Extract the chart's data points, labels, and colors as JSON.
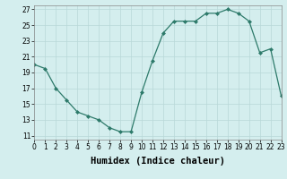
{
  "x": [
    0,
    1,
    2,
    3,
    4,
    5,
    6,
    7,
    8,
    9,
    10,
    11,
    12,
    13,
    14,
    15,
    16,
    17,
    18,
    19,
    20,
    21,
    22,
    23
  ],
  "y": [
    20.0,
    19.5,
    17.0,
    15.5,
    14.0,
    13.5,
    13.0,
    12.0,
    11.5,
    11.5,
    16.5,
    20.5,
    24.0,
    25.5,
    25.5,
    25.5,
    26.5,
    26.5,
    27.0,
    26.5,
    25.5,
    21.5,
    22.0,
    16.0
  ],
  "xlim": [
    0,
    23
  ],
  "ylim": [
    10.5,
    27.5
  ],
  "yticks": [
    11,
    13,
    15,
    17,
    19,
    21,
    23,
    25,
    27
  ],
  "xticks": [
    0,
    1,
    2,
    3,
    4,
    5,
    6,
    7,
    8,
    9,
    10,
    11,
    12,
    13,
    14,
    15,
    16,
    17,
    18,
    19,
    20,
    21,
    22,
    23
  ],
  "xlabel": "Humidex (Indice chaleur)",
  "line_color": "#2d7a6a",
  "marker_color": "#2d7a6a",
  "bg_color": "#d4eeee",
  "grid_color": "#b8d8d8",
  "tick_fontsize": 5.5,
  "label_fontsize": 7.5
}
